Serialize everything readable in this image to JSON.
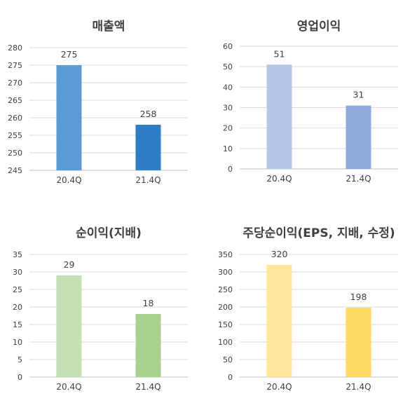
{
  "chart_data": [
    {
      "type": "bar",
      "title": "매출액",
      "categories": [
        "20.4Q",
        "21.4Q"
      ],
      "values": [
        275,
        258
      ],
      "ylim": [
        245,
        280
      ],
      "yticks": [
        245,
        250,
        255,
        260,
        265,
        270,
        275,
        280
      ],
      "colors": [
        "#5b9bd5",
        "#2e7dc7"
      ],
      "grid": true,
      "legend": "none"
    },
    {
      "type": "bar",
      "title": "영업이익",
      "categories": [
        "20.4Q",
        "21.4Q"
      ],
      "values": [
        51,
        31
      ],
      "ylim": [
        0,
        60
      ],
      "yticks": [
        0,
        10,
        20,
        30,
        40,
        50,
        60
      ],
      "colors": [
        "#b4c7e7",
        "#8faadc"
      ],
      "grid": true,
      "legend": "none"
    },
    {
      "type": "bar",
      "title": "순이익(지배)",
      "categories": [
        "20.4Q",
        "21.4Q"
      ],
      "values": [
        29,
        18
      ],
      "ylim": [
        0,
        35
      ],
      "yticks": [
        0,
        5,
        10,
        15,
        20,
        25,
        30,
        35
      ],
      "colors": [
        "#c5e0b4",
        "#a9d18e"
      ],
      "grid": true,
      "legend": "none"
    },
    {
      "type": "bar",
      "title": "주당순이익(EPS, 지배, 수정)",
      "categories": [
        "20.4Q",
        "21.4Q"
      ],
      "values": [
        320,
        198
      ],
      "ylim": [
        0,
        350
      ],
      "yticks": [
        0,
        50,
        100,
        150,
        200,
        250,
        300,
        350
      ],
      "colors": [
        "#ffe699",
        "#ffd966"
      ],
      "grid": true,
      "legend": "none"
    }
  ]
}
